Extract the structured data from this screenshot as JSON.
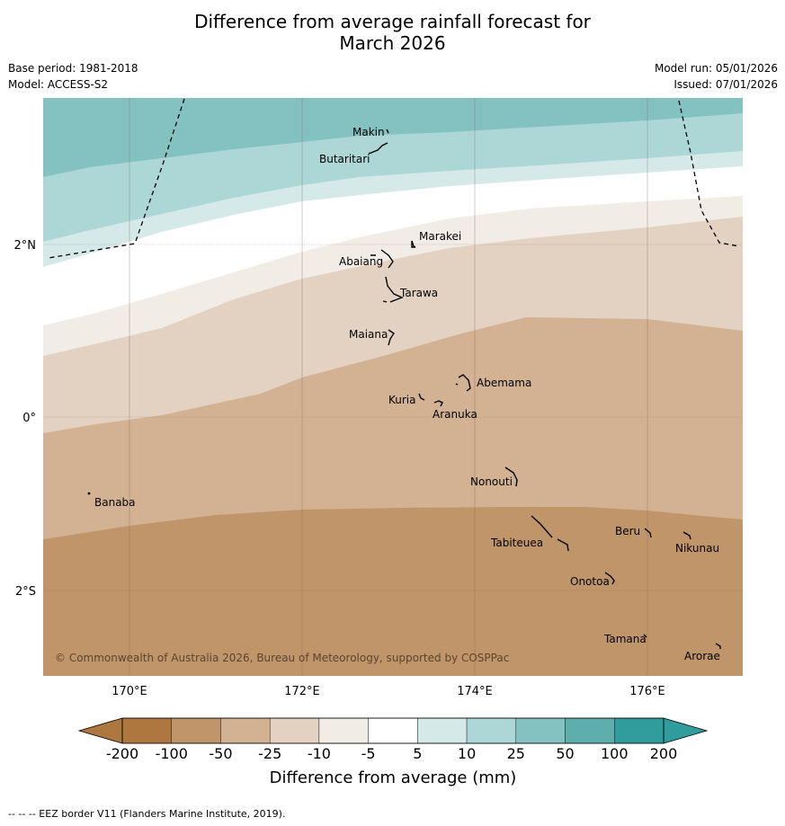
{
  "title": {
    "line1": "Difference from average rainfall forecast for",
    "line2": "March 2026"
  },
  "meta": {
    "base_period": "Base period: 1981-2018",
    "model": "Model: ACCESS-S2",
    "model_run": "Model run: 05/01/2026",
    "issued": "Issued: 07/01/2026"
  },
  "map": {
    "lat_labels": [
      "2°N",
      "0°",
      "2°S"
    ],
    "lon_labels": [
      "170°E",
      "172°E",
      "174°E",
      "176°E"
    ],
    "copyright": "© Commonwealth of Australia 2026, Bureau of Meteorology, supported by COSPPac",
    "places": [
      {
        "name": "Makin",
        "lon": 172.97,
        "lat": 3.12
      },
      {
        "name": "Butaritari",
        "lon": 172.88,
        "lat": 3.05
      },
      {
        "name": "Marakei",
        "lon": 173.32,
        "lat": 2.0
      },
      {
        "name": "Abaiang",
        "lon": 172.95,
        "lat": 1.85
      },
      {
        "name": "Tarawa",
        "lon": 173.0,
        "lat": 1.45
      },
      {
        "name": "Maiana",
        "lon": 173.03,
        "lat": 0.93
      },
      {
        "name": "Abemama",
        "lon": 173.88,
        "lat": 0.4
      },
      {
        "name": "Kuria",
        "lon": 173.4,
        "lat": 0.23
      },
      {
        "name": "Aranuka",
        "lon": 173.62,
        "lat": 0.17
      },
      {
        "name": "Banaba",
        "lon": 169.53,
        "lat": -0.87
      },
      {
        "name": "Nonouti",
        "lon": 174.4,
        "lat": -0.67
      },
      {
        "name": "Tabiteuea",
        "lon": 174.9,
        "lat": -1.3
      },
      {
        "name": "Beru",
        "lon": 176.0,
        "lat": -1.33
      },
      {
        "name": "Nikunau",
        "lon": 176.45,
        "lat": -1.37
      },
      {
        "name": "Onotoa",
        "lon": 175.58,
        "lat": -1.88
      },
      {
        "name": "Tamana",
        "lon": 175.98,
        "lat": -2.5
      },
      {
        "name": "Arorae",
        "lon": 176.83,
        "lat": -2.64
      }
    ]
  },
  "legend": {
    "ticks": [
      "-200",
      "-100",
      "-50",
      "-25",
      "-10",
      "-5",
      "5",
      "10",
      "25",
      "50",
      "100",
      "200"
    ],
    "colors": [
      "#ad773f",
      "#c0956a",
      "#d3b193",
      "#e3d2c1",
      "#f2ece6",
      "#ffffff",
      "#d6e9e9",
      "#add6d6",
      "#84c1c1",
      "#5eaeae",
      "#319c9c"
    ],
    "label": "Difference from average (mm)"
  },
  "footer": "--  --  -- EEZ border V11 (Flanders Marine Institute, 2019)."
}
